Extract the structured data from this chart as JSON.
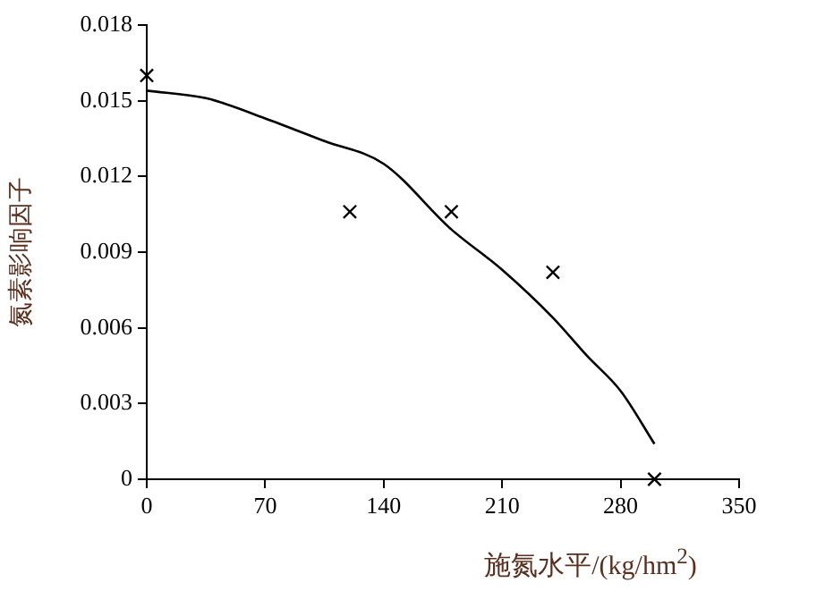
{
  "chart_data": {
    "type": "scatter",
    "xlabel": "施氮水平/(kg/hm$^{2}$)",
    "ylabel": "氮素影响因子",
    "xlim": [
      0,
      350
    ],
    "xticks": [
      0,
      70,
      140,
      210,
      280,
      350
    ],
    "ylim": [
      0,
      0.018
    ],
    "yticks": [
      0,
      0.003,
      0.006,
      0.009,
      0.012,
      0.015,
      0.018
    ],
    "grid": false,
    "legend": false,
    "series": [
      {
        "type": "scatter",
        "color": "#000000",
        "marker": "cross",
        "x": [
          0,
          120,
          180,
          240,
          300
        ],
        "values": [
          0.016,
          0.0106,
          0.0106,
          0.0082,
          0
        ]
      },
      {
        "type": "line",
        "color": "#000000",
        "marker": "none",
        "line_style": "solid",
        "x": [
          0,
          35,
          70,
          105,
          140,
          180,
          210,
          240,
          260,
          280,
          300
        ],
        "values": [
          0.0154,
          0.0151,
          0.0143,
          0.0134,
          0.0125,
          0.0099,
          0.0083,
          0.0064,
          0.0049,
          0.0035,
          0.0014
        ]
      }
    ]
  }
}
